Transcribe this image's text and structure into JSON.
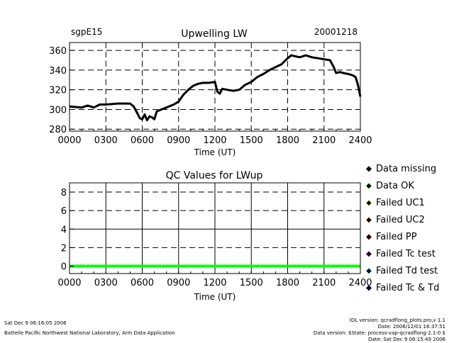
{
  "header": {
    "site": "sgpE15",
    "title": "Upwelling LW",
    "date": "20001218"
  },
  "footer": {
    "left_line1": "Sat Dec  9 06:16:05 2006",
    "left_line2": "Battelle Pacific Northwest National Laboratory, Arm Data Application",
    "right_line1": "IDL version: qcradflong_plots.pro,v 1.1",
    "right_line2": "Date: 2006/12/01 16:37:51",
    "right_line3": "Data version: $State: process-vap-qcradflong-2.1-0 $",
    "right_line4": "Date: Sat Dec  9 06:15:49 2006"
  },
  "chart_data": [
    {
      "type": "line",
      "title": "Upwelling LW",
      "xlabel": "Time (UT)",
      "ylabel": "",
      "xlim": [
        0,
        2400
      ],
      "ylim": [
        278,
        368
      ],
      "x_ticks": [
        "0000",
        "0300",
        "0600",
        "0900",
        "1200",
        "1500",
        "1800",
        "2100",
        "2400"
      ],
      "y_ticks": [
        "280",
        "300",
        "320",
        "340",
        "360"
      ],
      "grid": "dashed",
      "series": [
        {
          "color": "#000000",
          "x": [
            0,
            100,
            150,
            200,
            250,
            300,
            400,
            500,
            530,
            560,
            580,
            600,
            620,
            640,
            660,
            680,
            700,
            720,
            760,
            800,
            860,
            900,
            940,
            980,
            1020,
            1060,
            1100,
            1150,
            1200,
            1220,
            1240,
            1260,
            1300,
            1350,
            1400,
            1450,
            1500,
            1550,
            1600,
            1650,
            1700,
            1750,
            1800,
            1830,
            1860,
            1900,
            1950,
            2000,
            2050,
            2100,
            2150,
            2180,
            2200,
            2230,
            2260,
            2300,
            2330,
            2360,
            2380,
            2400
          ],
          "y": [
            303,
            302,
            304,
            302,
            305,
            305,
            306,
            306,
            303,
            296,
            291,
            290,
            295,
            289,
            293,
            292,
            290,
            298,
            300,
            302,
            305,
            308,
            315,
            320,
            324,
            326,
            327,
            327,
            328,
            318,
            316,
            321,
            320,
            319,
            320,
            325,
            328,
            333,
            336,
            340,
            343,
            346,
            352,
            355,
            354,
            353,
            355,
            353,
            352,
            351,
            350,
            343,
            337,
            338,
            337,
            336,
            335,
            333,
            325,
            313
          ]
        }
      ]
    },
    {
      "type": "line",
      "title": "QC Values for LWup",
      "xlabel": "Time (UT)",
      "ylabel": "",
      "xlim": [
        0,
        2400
      ],
      "ylim": [
        -0.8,
        9
      ],
      "x_ticks": [
        "0000",
        "0300",
        "0600",
        "0900",
        "1200",
        "1500",
        "1800",
        "2100",
        "2400"
      ],
      "y_ticks": [
        "0",
        "2",
        "4",
        "6",
        "8"
      ],
      "grid": "dashed",
      "series": [
        {
          "color": "#00ff00",
          "x": [
            0,
            2400
          ],
          "y": [
            0,
            0
          ]
        }
      ],
      "legend": {
        "placement": "right",
        "entries": [
          {
            "label": "Data missing",
            "color": "#000000"
          },
          {
            "label": "Data OK",
            "color": "#00ff00"
          },
          {
            "label": "Failed UC1",
            "color": "#ffff00"
          },
          {
            "label": "Failed UC2",
            "color": "#ff8c00"
          },
          {
            "label": "Failed PP",
            "color": "#ff0000"
          },
          {
            "label": "Failed Tc test",
            "color": "#ff00ff"
          },
          {
            "label": "Failed Td test",
            "color": "#00ffff"
          },
          {
            "label": "Failed Tc & Td",
            "color": "#0000ff"
          }
        ]
      }
    }
  ]
}
